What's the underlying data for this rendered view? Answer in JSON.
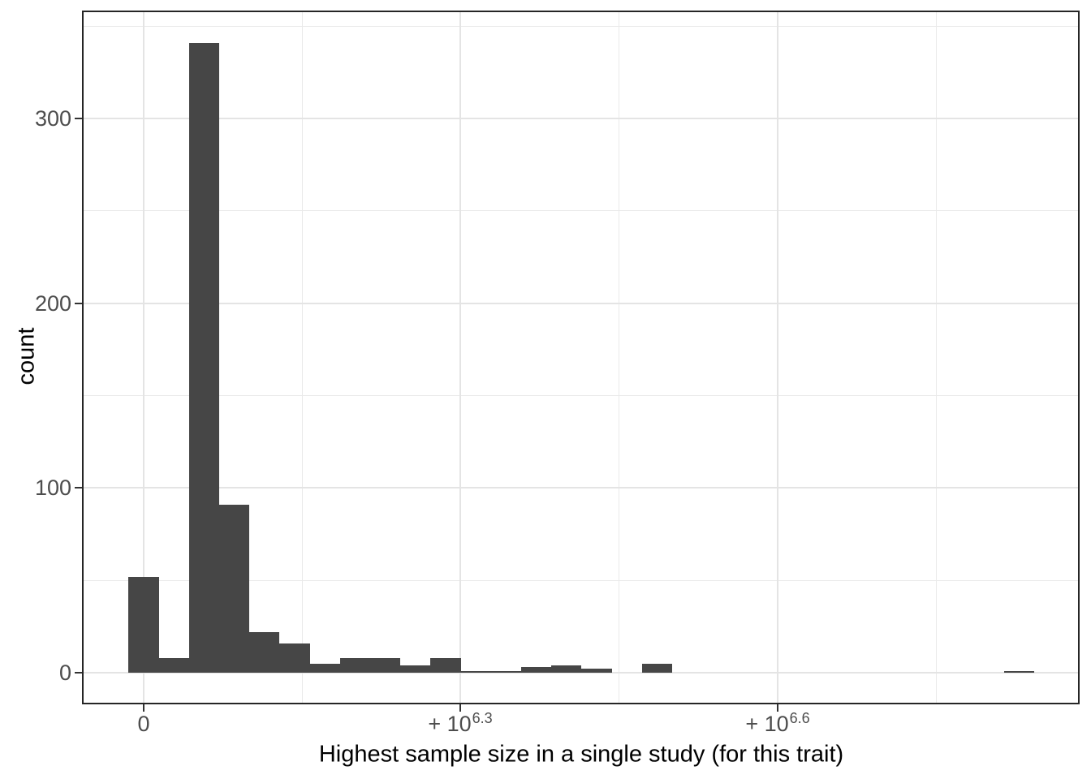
{
  "chart_data": {
    "type": "histogram",
    "title": "",
    "xlabel": "Highest sample size in a single study (for this trait)",
    "ylabel": "count",
    "x_axis": {
      "transform": "pseudo-log10",
      "ticks": [
        {
          "base": "0",
          "sup": null,
          "value": 0
        },
        {
          "base": "+ 10",
          "sup": "6.3",
          "value": 1995262
        },
        {
          "base": "+ 10",
          "sup": "6.6",
          "value": 3981072
        }
      ],
      "minor_gridlines": 3
    },
    "y_axis": {
      "ticks": [
        0,
        100,
        200,
        300
      ],
      "minor_ticks": [
        50,
        150,
        250,
        350
      ],
      "ylim": [
        -17,
        357
      ]
    },
    "bins_note": "30 equal-width bins on the pseudo-log-transformed axis, first bin centered at 0",
    "bin_counts": [
      52,
      8,
      341,
      91,
      22,
      16,
      5,
      8,
      8,
      4,
      8,
      1,
      1,
      3,
      4,
      2,
      0,
      5,
      0,
      0,
      0,
      0,
      0,
      0,
      0,
      0,
      0,
      0,
      0,
      1
    ],
    "legend": null,
    "grid": "major and minor, light gray on white",
    "colors": {
      "bar_fill": "#464646",
      "panel_border": "#262626",
      "grid_major": "#e4e4e4",
      "grid_minor": "#eaeaea",
      "tick_mark": "#333333",
      "tick_label": "#4d4d4d",
      "axis_title": "#000000",
      "background": "#ffffff"
    }
  }
}
